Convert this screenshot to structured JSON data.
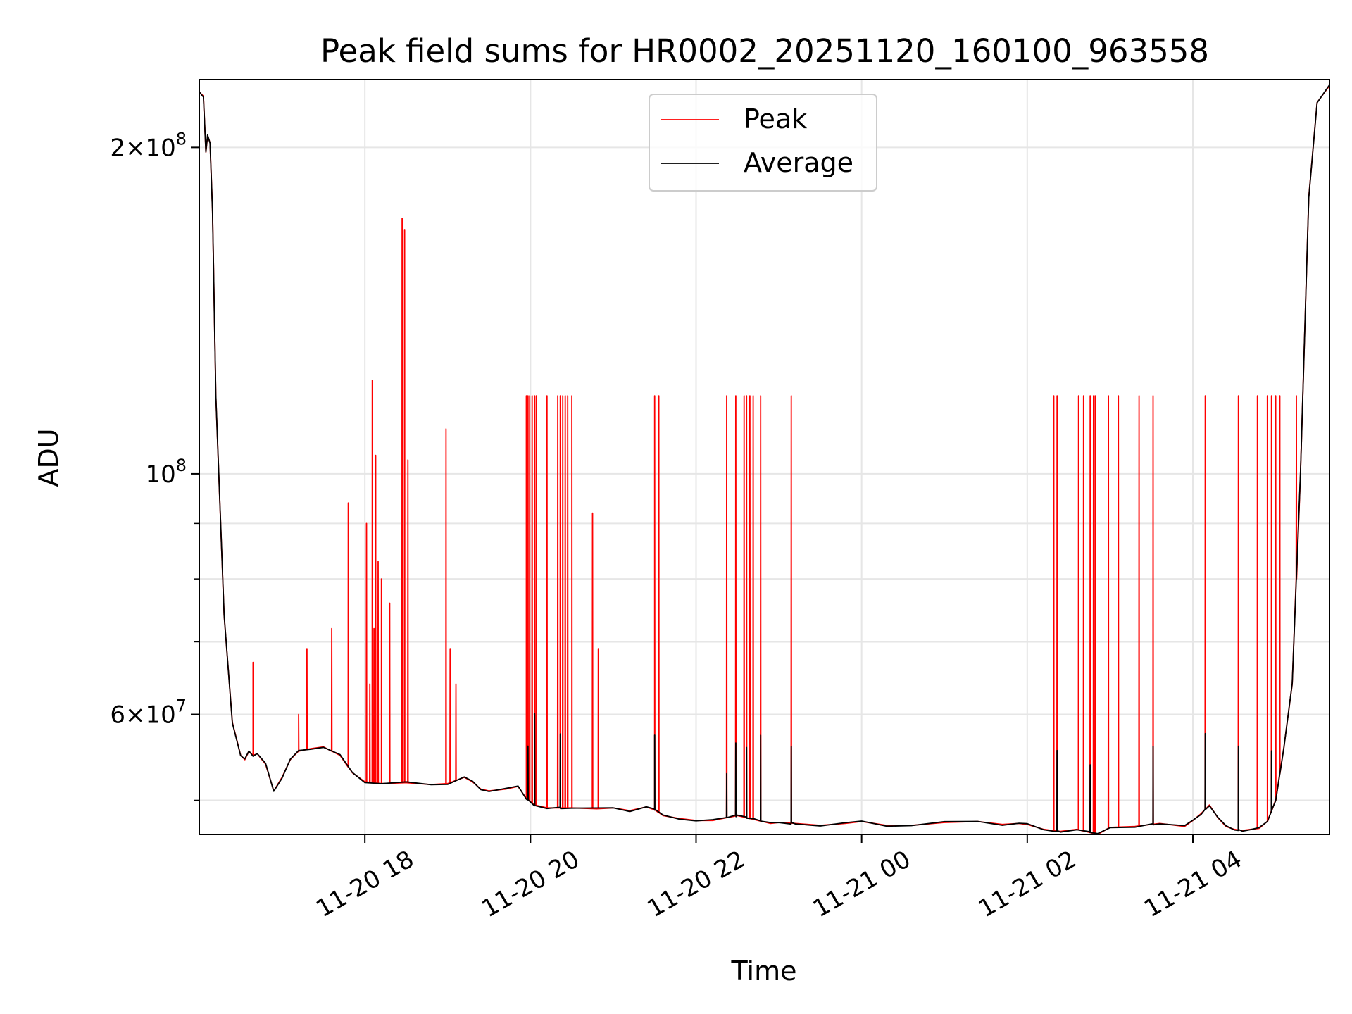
{
  "chart_data": {
    "type": "line",
    "title": "Peak field sums for HR0002_20251120_160100_963558",
    "xlabel": "Time",
    "ylabel": "ADU",
    "yscale": "log",
    "xlim": [
      16.0,
      29.65
    ],
    "ylim": [
      46500000,
      231000000
    ],
    "grid": true,
    "legend_loc": "top-center",
    "x_ticks": [
      {
        "value": 18,
        "label": "11-20 18"
      },
      {
        "value": 20,
        "label": "11-20 20"
      },
      {
        "value": 22,
        "label": "11-20 22"
      },
      {
        "value": 24,
        "label": "11-21 00"
      },
      {
        "value": 26,
        "label": "11-21 02"
      },
      {
        "value": 28,
        "label": "11-21 04"
      }
    ],
    "y_major_ticks": [
      {
        "value": 200000000,
        "mantissa": "2",
        "base": "10",
        "exp": "8"
      },
      {
        "value": 100000000,
        "mantissa": "",
        "base": "10",
        "exp": "8"
      },
      {
        "value": 60000000,
        "mantissa": "6",
        "base": "10",
        "exp": "7"
      }
    ],
    "y_minor_ticks": [
      50000000,
      70000000,
      80000000,
      90000000
    ],
    "series": [
      {
        "name": "Peak",
        "color": "#ff0000"
      },
      {
        "name": "Average",
        "color": "#000000"
      }
    ],
    "baseline": {
      "x": [
        16.0,
        16.05,
        16.08,
        16.1,
        16.13,
        16.16,
        16.2,
        16.3,
        16.4,
        16.5,
        16.55,
        16.6,
        16.65,
        16.7,
        16.8,
        16.9,
        17.0,
        17.1,
        17.2,
        17.35,
        17.5,
        17.7,
        17.85,
        18.0,
        18.2,
        18.5,
        18.8,
        19.0,
        19.2,
        19.3,
        19.4,
        19.5,
        19.7,
        19.85,
        19.95,
        20.05,
        20.2,
        20.5,
        20.8,
        21.0,
        21.2,
        21.4,
        21.5,
        21.6,
        21.8,
        22.0,
        22.2,
        22.5,
        22.7,
        22.9,
        23.0,
        23.2,
        23.5,
        23.8,
        24.0,
        24.3,
        24.6,
        25.0,
        25.4,
        25.7,
        25.9,
        26.0,
        26.2,
        26.4,
        26.6,
        26.75,
        26.85,
        27.0,
        27.3,
        27.6,
        27.9,
        28.0,
        28.1,
        28.2,
        28.3,
        28.4,
        28.5,
        28.6,
        28.7,
        28.8,
        28.9,
        29.0,
        29.1,
        29.2,
        29.3,
        29.4,
        29.5,
        29.65
      ],
      "y": [
        225000000,
        223000000,
        198000000,
        205000000,
        202000000,
        175000000,
        118000000,
        74000000,
        59000000,
        55000000,
        54500000,
        55500000,
        55000000,
        55200000,
        54000000,
        51000000,
        52500000,
        54500000,
        55500000,
        55800000,
        56000000,
        55000000,
        53000000,
        52000000,
        51800000,
        51900000,
        51700000,
        51800000,
        52500000,
        52000000,
        51200000,
        51000000,
        51200000,
        51500000,
        50200000,
        49500000,
        49200000,
        49200000,
        49100000,
        49200000,
        48900000,
        49300000,
        49000000,
        48400000,
        48100000,
        47900000,
        47900000,
        48400000,
        48000000,
        47600000,
        47700000,
        47600000,
        47400000,
        47600000,
        47800000,
        47400000,
        47400000,
        47700000,
        47800000,
        47500000,
        47600000,
        47500000,
        47000000,
        46800000,
        47000000,
        46700000,
        46500000,
        47200000,
        47300000,
        47600000,
        47300000,
        47900000,
        48600000,
        49500000,
        48200000,
        47300000,
        47000000,
        46900000,
        47000000,
        47100000,
        47800000,
        50000000,
        56000000,
        64000000,
        100000000,
        180000000,
        220000000,
        228000000
      ]
    },
    "peak_spikes": [
      {
        "x": 16.65,
        "y": 67000000
      },
      {
        "x": 17.2,
        "y": 60000000
      },
      {
        "x": 17.3,
        "y": 69000000
      },
      {
        "x": 17.6,
        "y": 72000000
      },
      {
        "x": 17.8,
        "y": 94000000
      },
      {
        "x": 18.02,
        "y": 90000000
      },
      {
        "x": 18.06,
        "y": 64000000
      },
      {
        "x": 18.09,
        "y": 122000000
      },
      {
        "x": 18.11,
        "y": 72000000
      },
      {
        "x": 18.13,
        "y": 104000000
      },
      {
        "x": 18.16,
        "y": 83000000
      },
      {
        "x": 18.2,
        "y": 80000000
      },
      {
        "x": 18.3,
        "y": 76000000
      },
      {
        "x": 18.45,
        "y": 172000000
      },
      {
        "x": 18.48,
        "y": 168000000
      },
      {
        "x": 18.52,
        "y": 103000000
      },
      {
        "x": 18.98,
        "y": 110000000
      },
      {
        "x": 19.03,
        "y": 69000000
      },
      {
        "x": 19.1,
        "y": 64000000
      },
      {
        "x": 19.95,
        "y": 118000000
      },
      {
        "x": 19.97,
        "y": 118000000
      },
      {
        "x": 19.99,
        "y": 118000000
      },
      {
        "x": 20.02,
        "y": 118000000
      },
      {
        "x": 20.05,
        "y": 118000000
      },
      {
        "x": 20.07,
        "y": 118000000
      },
      {
        "x": 20.2,
        "y": 118000000
      },
      {
        "x": 20.33,
        "y": 118000000
      },
      {
        "x": 20.36,
        "y": 118000000
      },
      {
        "x": 20.39,
        "y": 118000000
      },
      {
        "x": 20.42,
        "y": 118000000
      },
      {
        "x": 20.45,
        "y": 118000000
      },
      {
        "x": 20.5,
        "y": 118000000
      },
      {
        "x": 20.75,
        "y": 92000000
      },
      {
        "x": 20.82,
        "y": 69000000
      },
      {
        "x": 21.5,
        "y": 118000000
      },
      {
        "x": 21.55,
        "y": 118000000
      },
      {
        "x": 22.37,
        "y": 118000000
      },
      {
        "x": 22.48,
        "y": 118000000
      },
      {
        "x": 22.58,
        "y": 118000000
      },
      {
        "x": 22.61,
        "y": 118000000
      },
      {
        "x": 22.65,
        "y": 118000000
      },
      {
        "x": 22.69,
        "y": 118000000
      },
      {
        "x": 22.78,
        "y": 118000000
      },
      {
        "x": 23.15,
        "y": 118000000
      },
      {
        "x": 26.32,
        "y": 118000000
      },
      {
        "x": 26.36,
        "y": 118000000
      },
      {
        "x": 26.62,
        "y": 118000000
      },
      {
        "x": 26.68,
        "y": 118000000
      },
      {
        "x": 26.76,
        "y": 118000000
      },
      {
        "x": 26.8,
        "y": 118000000
      },
      {
        "x": 26.82,
        "y": 118000000
      },
      {
        "x": 26.98,
        "y": 118000000
      },
      {
        "x": 27.1,
        "y": 118000000
      },
      {
        "x": 27.35,
        "y": 118000000
      },
      {
        "x": 27.52,
        "y": 118000000
      },
      {
        "x": 28.15,
        "y": 118000000
      },
      {
        "x": 28.55,
        "y": 118000000
      },
      {
        "x": 28.78,
        "y": 118000000
      },
      {
        "x": 28.9,
        "y": 118000000
      },
      {
        "x": 28.95,
        "y": 118000000
      },
      {
        "x": 29.0,
        "y": 118000000
      },
      {
        "x": 29.05,
        "y": 118000000
      },
      {
        "x": 29.25,
        "y": 118000000
      }
    ],
    "average_spikes": [
      {
        "x": 19.97,
        "y": 56000000
      },
      {
        "x": 20.05,
        "y": 60000000
      },
      {
        "x": 20.36,
        "y": 57500000
      },
      {
        "x": 21.5,
        "y": 57500000
      },
      {
        "x": 22.37,
        "y": 53000000
      },
      {
        "x": 22.48,
        "y": 56500000
      },
      {
        "x": 22.61,
        "y": 56000000
      },
      {
        "x": 22.78,
        "y": 57500000
      },
      {
        "x": 23.15,
        "y": 56000000
      },
      {
        "x": 26.36,
        "y": 55500000
      },
      {
        "x": 26.76,
        "y": 54000000
      },
      {
        "x": 27.52,
        "y": 56000000
      },
      {
        "x": 28.15,
        "y": 57500000
      },
      {
        "x": 28.55,
        "y": 56000000
      },
      {
        "x": 28.95,
        "y": 55500000
      }
    ]
  }
}
